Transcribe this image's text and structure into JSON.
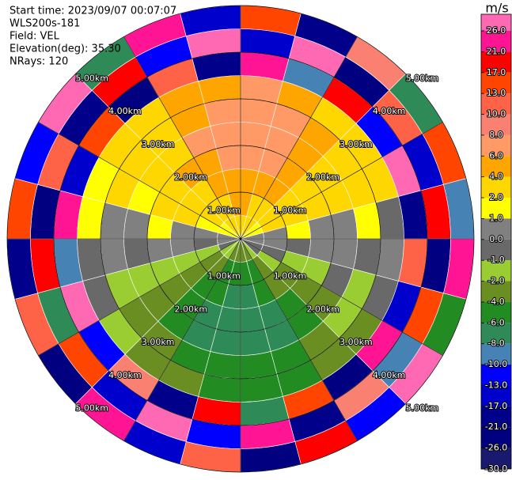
{
  "chart_data": {
    "type": "ppi",
    "info": [
      "Start time: 2023/09/07 00:07:07",
      "WLS200s-181",
      "Field: VEL",
      "Elevation(deg): 35.30",
      "NRays: 120"
    ],
    "colorbar": {
      "title": "m/s",
      "ticks": [
        {
          "value": 26,
          "label": "26.0"
        },
        {
          "value": 21,
          "label": "21.0"
        },
        {
          "value": 17,
          "label": "17.0"
        },
        {
          "value": 13,
          "label": "13.0"
        },
        {
          "value": 10,
          "label": "10.0"
        },
        {
          "value": 8,
          "label": "8.0"
        },
        {
          "value": 6,
          "label": "6.0"
        },
        {
          "value": 4,
          "label": "4.0"
        },
        {
          "value": 2,
          "label": "2.0"
        },
        {
          "value": 1,
          "label": "1.0"
        },
        {
          "value": 0,
          "label": "0.0"
        },
        {
          "value": -1,
          "label": "-1.0"
        },
        {
          "value": -2,
          "label": "-2.0"
        },
        {
          "value": -4,
          "label": "-4.0"
        },
        {
          "value": -6,
          "label": "-6.0"
        },
        {
          "value": -8,
          "label": "-8.0"
        },
        {
          "value": -10,
          "label": "-10.0"
        },
        {
          "value": -13,
          "label": "-13.0"
        },
        {
          "value": -17,
          "label": "-17.0"
        },
        {
          "value": -21,
          "label": "-21.0"
        },
        {
          "value": -26,
          "label": "-26.0"
        },
        {
          "value": -30,
          "label": "-30.0"
        }
      ],
      "colors": [
        "#ff69b4",
        "#ff1493",
        "#ff0000",
        "#ff4500",
        "#ff6347",
        "#fa8072",
        "#ff9966",
        "#ffa500",
        "#ffd700",
        "#ffff00",
        "#808080",
        "#696969",
        "#9acd32",
        "#6b8e23",
        "#228b22",
        "#2e8b57",
        "#4682b4",
        "#0000ff",
        "#0000cd",
        "#00008b",
        "#000080",
        "#191970"
      ]
    },
    "rings": [
      {
        "value": 1,
        "label": "1.00km"
      },
      {
        "value": 2,
        "label": "2.00km"
      },
      {
        "value": 3,
        "label": "3.00km"
      },
      {
        "value": 4,
        "label": "4.00km"
      },
      {
        "value": 5,
        "label": "5.00km"
      }
    ],
    "values": [
      [
        2,
        4,
        5,
        6,
        7,
        7,
        6,
        21,
        -17,
        13
      ],
      [
        2,
        3,
        5,
        6,
        7,
        6,
        5,
        -10,
        26,
        -21
      ],
      [
        2,
        3,
        4,
        5,
        5,
        5,
        3,
        17,
        -26,
        8
      ],
      [
        1,
        2,
        3,
        3,
        3,
        3,
        2,
        -13,
        10,
        -8
      ],
      [
        1,
        2,
        2,
        3,
        3,
        2,
        2,
        26,
        -17,
        13
      ],
      [
        0,
        0,
        1,
        0,
        0,
        1,
        -1,
        -21,
        17,
        -10
      ],
      [
        0,
        0,
        -1,
        0,
        0,
        -1,
        0,
        10,
        -26,
        21
      ],
      [
        -1,
        -1,
        -2,
        -2,
        -1,
        -2,
        -1,
        -17,
        13,
        -6
      ],
      [
        -1,
        -2,
        -3,
        -3,
        -3,
        -2,
        -3,
        21,
        -10,
        26
      ],
      [
        -2,
        -3,
        -4,
        -5,
        -5,
        -4,
        -3,
        -26,
        8,
        -13
      ],
      [
        -3,
        -5,
        -6,
        -7,
        -7,
        -6,
        -5,
        13,
        -21,
        17
      ],
      [
        -4,
        -6,
        -7,
        -7,
        -7,
        -6,
        -5,
        -8,
        21,
        -26
      ],
      [
        -4,
        -6,
        -7,
        -7,
        -7,
        -6,
        -5,
        17,
        -13,
        10
      ],
      [
        -3,
        -5,
        -6,
        -7,
        -7,
        -6,
        -4,
        -21,
        26,
        -17
      ],
      [
        -2,
        -4,
        -5,
        -5,
        -5,
        -4,
        -3,
        8,
        -17,
        21
      ],
      [
        -2,
        -3,
        -3,
        -3,
        -3,
        -3,
        -2,
        -13,
        13,
        -26
      ],
      [
        -1,
        -2,
        -2,
        -2,
        -2,
        -2,
        -1,
        26,
        -8,
        10
      ],
      [
        0,
        -1,
        0,
        0,
        -1,
        0,
        -1,
        -10,
        17,
        -21
      ],
      [
        0,
        0,
        0,
        1,
        0,
        0,
        1,
        21,
        -26,
        13
      ],
      [
        1,
        1,
        2,
        2,
        1,
        2,
        1,
        -17,
        10,
        -13
      ],
      [
        1,
        2,
        3,
        3,
        3,
        2,
        2,
        13,
        -21,
        26
      ],
      [
        2,
        3,
        3,
        4,
        3,
        3,
        3,
        -26,
        17,
        -8
      ],
      [
        2,
        3,
        4,
        5,
        6,
        5,
        4,
        10,
        -13,
        21
      ],
      [
        2,
        4,
        5,
        6,
        7,
        7,
        5,
        -21,
        26,
        -17
      ]
    ]
  }
}
